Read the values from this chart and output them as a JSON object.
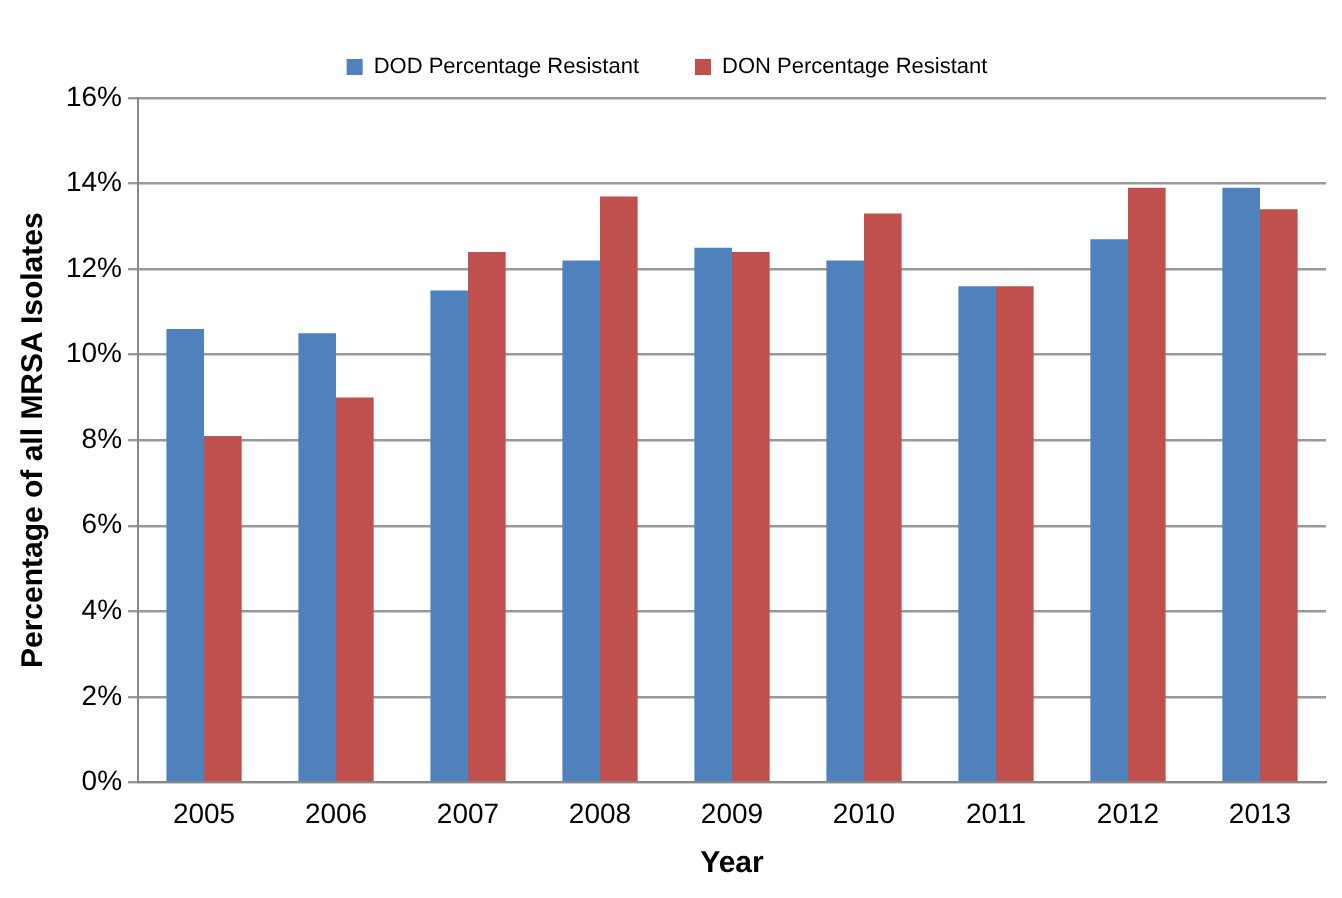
{
  "chart_data": {
    "type": "bar",
    "xlabel": "Year",
    "ylabel": "Percentage of all MRSA Isolates",
    "categories": [
      "2005",
      "2006",
      "2007",
      "2008",
      "2009",
      "2010",
      "2011",
      "2012",
      "2013"
    ],
    "series": [
      {
        "name": "DOD Percentage Resistant",
        "color": "#4f81bd",
        "values": [
          10.6,
          10.5,
          11.5,
          12.2,
          12.5,
          12.2,
          11.6,
          12.7,
          13.9
        ]
      },
      {
        "name": "DON Percentage Resistant",
        "color": "#c0504d",
        "values": [
          8.1,
          9.0,
          12.4,
          13.7,
          12.4,
          13.3,
          11.6,
          13.9,
          13.4
        ]
      }
    ],
    "ylim": [
      0,
      16
    ],
    "yticks": [
      {
        "value": 0,
        "label": "0%"
      },
      {
        "value": 2,
        "label": "2%"
      },
      {
        "value": 4,
        "label": "4%"
      },
      {
        "value": 6,
        "label": "6%"
      },
      {
        "value": 8,
        "label": "8%"
      },
      {
        "value": 10,
        "label": "10%"
      },
      {
        "value": 12,
        "label": "12%"
      },
      {
        "value": 14,
        "label": "14%"
      },
      {
        "value": 16,
        "label": "16%"
      }
    ],
    "grid": "y",
    "legend": "top"
  }
}
